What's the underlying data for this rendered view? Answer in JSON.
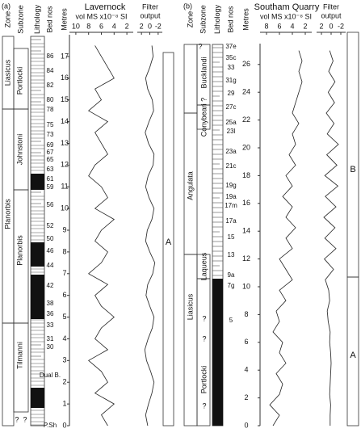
{
  "chart_data": [
    {
      "type": "line",
      "panel_label": "(a)",
      "title": "Lavernock",
      "x_label": "vol MS x10⁻⁸ SI",
      "filter_label": [
        "Filter",
        "output"
      ],
      "headers": [
        "Zone",
        "Subzone",
        "Lithology",
        "Bed nos",
        "Metres"
      ],
      "zones": [
        "Liasicus",
        "Planorbis"
      ],
      "subzones": [
        "Portlocki",
        "Johnstoni",
        "Planorbis",
        "Tilmanni",
        "?",
        "?"
      ],
      "beds": [
        "86",
        "84",
        "82",
        "80",
        "78",
        "75",
        "73",
        "69",
        "67",
        "65",
        "63",
        "61",
        "59",
        "56",
        "52",
        "50",
        "46",
        "44",
        "42",
        "38",
        "36",
        "33",
        "31",
        "30",
        "Dual B.",
        "P.Sh"
      ],
      "intervals": [
        "A"
      ],
      "ylim": [
        0,
        18
      ],
      "yticks": [
        0,
        1,
        2,
        3,
        4,
        5,
        6,
        7,
        8,
        9,
        10,
        11,
        12,
        13,
        14,
        15,
        16,
        17
      ],
      "xlim": [
        11,
        1
      ],
      "xticks": [
        10,
        8,
        6,
        4,
        2
      ],
      "x2lim": [
        3,
        -3
      ],
      "x2ticks": [
        2,
        0,
        -2
      ],
      "depth": [
        0,
        0.5,
        1,
        1.5,
        2,
        2.5,
        3,
        3.5,
        4,
        4.5,
        5,
        5.5,
        6,
        6.5,
        7,
        7.5,
        8,
        8.5,
        9,
        9.5,
        10,
        10.5,
        11,
        11.5,
        12,
        12.5,
        13,
        13.5,
        14,
        14.5,
        15,
        15.5,
        16,
        16.5,
        17,
        17.5
      ],
      "series": [
        {
          "color": "#222222",
          "values": [
            5,
            6,
            4,
            7,
            5,
            6,
            8,
            5,
            7,
            6,
            4,
            6,
            7,
            5,
            8,
            6,
            5,
            7,
            6,
            4,
            7,
            5,
            6,
            8,
            7,
            5,
            6,
            7,
            5,
            8,
            6,
            7,
            4,
            5,
            6,
            7
          ]
        },
        {
          "color": "#333333",
          "axis": "x2",
          "values": [
            0.5,
            1,
            0.3,
            -0.5,
            -1,
            -0.2,
            0.8,
            1.2,
            0.4,
            -0.6,
            -1,
            0,
            0.9,
            0.5,
            -0.7,
            -1.2,
            0,
            1,
            0.6,
            -0.5,
            -1,
            0.2,
            1,
            0.4,
            -0.8,
            -1,
            0.3,
            1.1,
            0.2,
            -0.9,
            -0.6,
            0.5,
            1,
            0,
            -0.8,
            -0.5
          ]
        }
      ]
    },
    {
      "type": "line",
      "panel_label": "(b)",
      "title": "Southam Quarry",
      "x_label": "vol MS x10⁻⁸ SI",
      "filter_label": [
        "Filter",
        "output"
      ],
      "headers": [
        "Zone",
        "Subzone",
        "Lithology",
        "Bed nos",
        "Metres"
      ],
      "zones": [
        "Angulata",
        "Liasicus"
      ],
      "subzones": [
        "Bucklandi",
        "Conybeari ?",
        "Laqueus",
        "Portlocki",
        "?",
        "?",
        "?",
        "?"
      ],
      "beds": [
        "37e",
        "35c",
        "33",
        "31g",
        "29",
        "27c",
        "25a",
        "23l",
        "23a",
        "21c",
        "19g",
        "19a",
        "17m",
        "17a",
        "15",
        "13",
        "9a",
        "7g",
        "5"
      ],
      "intervals": [
        "B",
        "A"
      ],
      "ylim": [
        0,
        27.5
      ],
      "yticks": [
        0,
        2,
        4,
        6,
        8,
        10,
        12,
        14,
        16,
        18,
        20,
        22,
        24,
        26
      ],
      "xlim": [
        9,
        1
      ],
      "xticks": [
        8,
        6,
        4,
        2
      ],
      "x2lim": [
        3,
        -3
      ],
      "x2ticks": [
        2,
        0,
        -2
      ],
      "depth": [
        0,
        0.75,
        1.5,
        2.25,
        3,
        3.75,
        4.5,
        5.25,
        6,
        6.75,
        7.5,
        8.25,
        9,
        9.75,
        10.5,
        11.25,
        12,
        12.75,
        13.5,
        14.25,
        15,
        15.75,
        16.5,
        17.25,
        18,
        18.75,
        19.5,
        20.25,
        21,
        21.75,
        22.5,
        23.25,
        24,
        24.75,
        25.5,
        26.25,
        27
      ],
      "series": [
        {
          "color": "#222222",
          "values": [
            7,
            6,
            7.5,
            6,
            5.5,
            6.5,
            5,
            6,
            5.5,
            7,
            6,
            6.5,
            5,
            6,
            4,
            5,
            6,
            4,
            5,
            3.5,
            5,
            4,
            5.5,
            4,
            5,
            3.5,
            4.5,
            3.5,
            4,
            3,
            4,
            3.5,
            3,
            2.5,
            3,
            2.5,
            3
          ]
        },
        {
          "color": "#333333",
          "axis": "x2",
          "values": [
            0.2,
            0.2,
            0.1,
            0.3,
            0.2,
            0.1,
            0,
            0.1,
            0.3,
            0.2,
            0.6,
            0.8,
            0.3,
            0.5,
            1.2,
            -0.5,
            1.4,
            -1,
            1.3,
            -0.8,
            1.5,
            -1,
            1.2,
            -1.4,
            1.3,
            -1.2,
            0.9,
            -1.5,
            0.8,
            -0.6,
            1,
            -0.7,
            0.6,
            -0.8,
            0.5,
            -0.4,
            0.3
          ]
        }
      ]
    }
  ]
}
